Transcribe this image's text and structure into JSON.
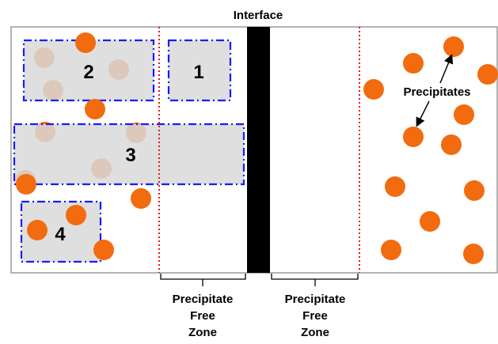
{
  "title": "Interface",
  "annotation": "Precipitates",
  "zone_label_lines": [
    "Precipitate",
    "Free",
    "Zone"
  ],
  "boxes": [
    {
      "id": "box-1",
      "number": "1"
    },
    {
      "id": "box-2",
      "number": "2"
    },
    {
      "id": "box-3",
      "number": "3"
    },
    {
      "id": "box-4",
      "number": "4"
    }
  ],
  "colors": {
    "precipitate": "#f26b0f",
    "box_fill": "#d9d9d9",
    "box_border": "#1a1aff",
    "pfz_boundary": "#e8151c",
    "interface": "#000000",
    "frame": "#9a9a9a"
  },
  "precipitate_count": 28
}
